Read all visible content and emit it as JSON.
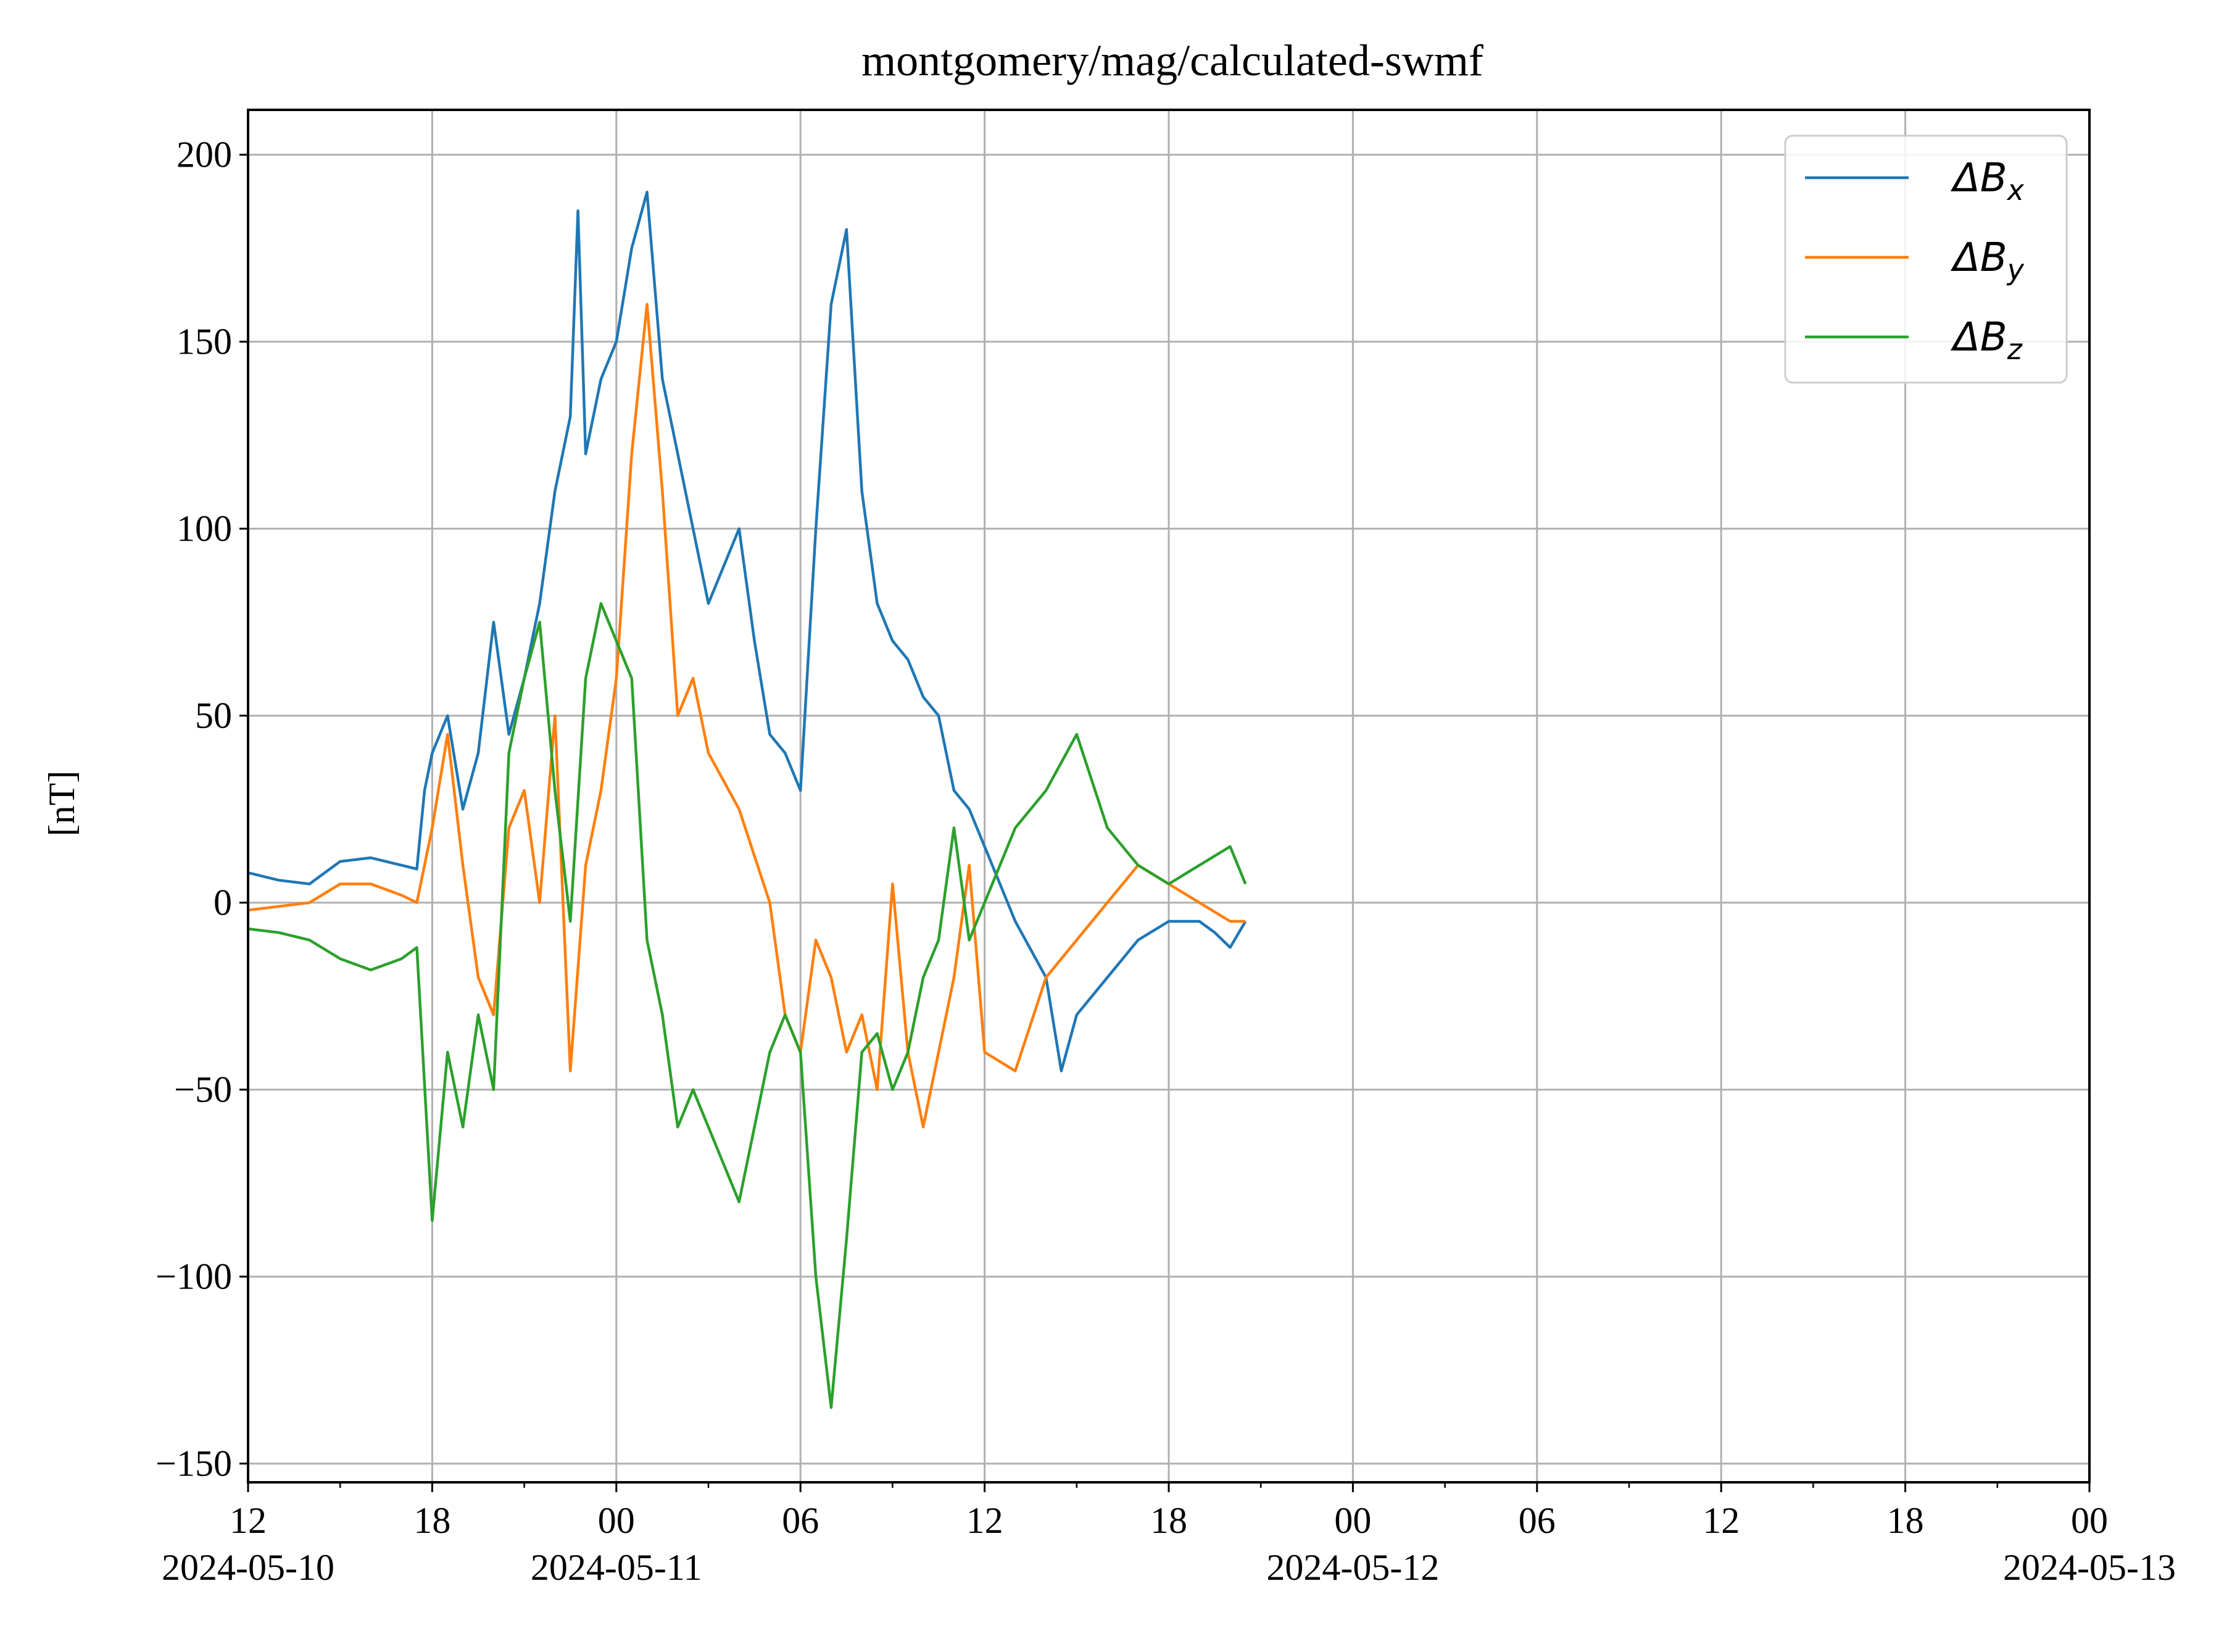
{
  "chart_data": {
    "type": "line",
    "title": "montgomery/mag/calculated-swmf",
    "xlabel": "",
    "ylabel": "[nT]",
    "grid": true,
    "legend_position": "top-right",
    "xlim_hours_from_start": [
      0,
      60
    ],
    "ylim": [
      -155,
      212
    ],
    "y_ticks": [
      {
        "value": 200,
        "label": "200"
      },
      {
        "value": 150,
        "label": "150"
      },
      {
        "value": 100,
        "label": "100"
      },
      {
        "value": 50,
        "label": "50"
      },
      {
        "value": 0,
        "label": "0"
      },
      {
        "value": -50,
        "label": "−50"
      },
      {
        "value": -100,
        "label": "−100"
      },
      {
        "value": -150,
        "label": "−150"
      }
    ],
    "x_ticks": [
      {
        "time": "2024-05-10 12:00",
        "label": "12",
        "date": "2024-05-10"
      },
      {
        "time": "2024-05-10 18:00",
        "label": "18",
        "date": ""
      },
      {
        "time": "2024-05-11 00:00",
        "label": "00",
        "date": "2024-05-11"
      },
      {
        "time": "2024-05-11 06:00",
        "label": "06",
        "date": ""
      },
      {
        "time": "2024-05-11 12:00",
        "label": "12",
        "date": ""
      },
      {
        "time": "2024-05-11 18:00",
        "label": "18",
        "date": ""
      },
      {
        "time": "2024-05-12 00:00",
        "label": "00",
        "date": "2024-05-12"
      },
      {
        "time": "2024-05-12 06:00",
        "label": "06",
        "date": ""
      },
      {
        "time": "2024-05-12 12:00",
        "label": "12",
        "date": ""
      },
      {
        "time": "2024-05-12 18:00",
        "label": "18",
        "date": ""
      },
      {
        "time": "2024-05-13 00:00",
        "label": "00",
        "date": "2024-05-13"
      }
    ],
    "x_minor_tick_hours": [
      3,
      9,
      15,
      21,
      27,
      33,
      39,
      45,
      51,
      57
    ],
    "x_tick_hours": [
      0,
      6,
      12,
      18,
      24,
      30,
      36,
      42,
      48,
      54,
      60
    ],
    "series": [
      {
        "name": "ΔB",
        "subscript": "x",
        "color": "#1f77b4",
        "t": [
          "2024-05-10 12:00",
          "2024-05-10 13:00",
          "2024-05-10 14:00",
          "2024-05-10 15:00",
          "2024-05-10 16:00",
          "2024-05-10 17:00",
          "2024-05-10 17:30",
          "2024-05-10 17:45",
          "2024-05-10 18:00",
          "2024-05-10 18:30",
          "2024-05-10 19:00",
          "2024-05-10 19:30",
          "2024-05-10 20:00",
          "2024-05-10 20:30",
          "2024-05-10 21:00",
          "2024-05-10 21:30",
          "2024-05-10 22:00",
          "2024-05-10 22:30",
          "2024-05-10 22:45",
          "2024-05-10 23:00",
          "2024-05-10 23:30",
          "2024-05-11 00:00",
          "2024-05-11 00:30",
          "2024-05-11 01:00",
          "2024-05-11 01:30",
          "2024-05-11 02:00",
          "2024-05-11 02:30",
          "2024-05-11 03:00",
          "2024-05-11 04:00",
          "2024-05-11 04:30",
          "2024-05-11 05:00",
          "2024-05-11 05:30",
          "2024-05-11 06:00",
          "2024-05-11 06:30",
          "2024-05-11 07:00",
          "2024-05-11 07:30",
          "2024-05-11 08:00",
          "2024-05-11 08:30",
          "2024-05-11 09:00",
          "2024-05-11 09:30",
          "2024-05-11 10:00",
          "2024-05-11 10:30",
          "2024-05-11 11:00",
          "2024-05-11 11:30",
          "2024-05-11 12:00",
          "2024-05-11 12:30",
          "2024-05-11 13:00",
          "2024-05-11 14:00",
          "2024-05-11 14:30",
          "2024-05-11 15:00",
          "2024-05-11 16:00",
          "2024-05-11 17:00",
          "2024-05-11 18:00",
          "2024-05-11 19:00",
          "2024-05-11 19:30",
          "2024-05-11 20:00",
          "2024-05-11 20:30"
        ],
        "values": [
          8,
          6,
          5,
          11,
          12,
          10,
          9,
          30,
          40,
          50,
          25,
          40,
          75,
          45,
          60,
          80,
          110,
          130,
          185,
          120,
          140,
          150,
          175,
          190,
          140,
          120,
          100,
          80,
          100,
          70,
          45,
          40,
          30,
          100,
          160,
          180,
          110,
          80,
          70,
          65,
          55,
          50,
          30,
          25,
          15,
          5,
          -5,
          -20,
          -45,
          -30,
          -20,
          -10,
          -5,
          -5,
          -8,
          -12,
          -5
        ]
      },
      {
        "name": "ΔB",
        "subscript": "y",
        "color": "#ff7f0e",
        "t": [
          "2024-05-10 12:00",
          "2024-05-10 13:00",
          "2024-05-10 14:00",
          "2024-05-10 15:00",
          "2024-05-10 16:00",
          "2024-05-10 17:00",
          "2024-05-10 17:30",
          "2024-05-10 18:00",
          "2024-05-10 18:30",
          "2024-05-10 19:00",
          "2024-05-10 19:30",
          "2024-05-10 20:00",
          "2024-05-10 20:30",
          "2024-05-10 21:00",
          "2024-05-10 21:30",
          "2024-05-10 22:00",
          "2024-05-10 22:30",
          "2024-05-10 23:00",
          "2024-05-10 23:30",
          "2024-05-11 00:00",
          "2024-05-11 00:30",
          "2024-05-11 01:00",
          "2024-05-11 01:30",
          "2024-05-11 02:00",
          "2024-05-11 02:30",
          "2024-05-11 03:00",
          "2024-05-11 04:00",
          "2024-05-11 05:00",
          "2024-05-11 05:30",
          "2024-05-11 06:00",
          "2024-05-11 06:30",
          "2024-05-11 07:00",
          "2024-05-11 07:30",
          "2024-05-11 08:00",
          "2024-05-11 08:30",
          "2024-05-11 09:00",
          "2024-05-11 09:30",
          "2024-05-11 10:00",
          "2024-05-11 10:30",
          "2024-05-11 11:00",
          "2024-05-11 11:30",
          "2024-05-11 12:00",
          "2024-05-11 13:00",
          "2024-05-11 14:00",
          "2024-05-11 15:00",
          "2024-05-11 16:00",
          "2024-05-11 17:00",
          "2024-05-11 18:00",
          "2024-05-11 19:00",
          "2024-05-11 20:00",
          "2024-05-11 20:30"
        ],
        "values": [
          -2,
          -1,
          0,
          5,
          5,
          2,
          0,
          20,
          45,
          10,
          -20,
          -30,
          20,
          30,
          0,
          50,
          -45,
          10,
          30,
          60,
          120,
          160,
          110,
          50,
          60,
          40,
          25,
          0,
          -30,
          -40,
          -10,
          -20,
          -40,
          -30,
          -50,
          5,
          -40,
          -60,
          -40,
          -20,
          10,
          -40,
          -45,
          -20,
          -10,
          0,
          10,
          5,
          0,
          -5,
          -5
        ]
      },
      {
        "name": "ΔB",
        "subscript": "z",
        "color": "#2ca02c",
        "t": [
          "2024-05-10 12:00",
          "2024-05-10 13:00",
          "2024-05-10 14:00",
          "2024-05-10 15:00",
          "2024-05-10 16:00",
          "2024-05-10 17:00",
          "2024-05-10 17:30",
          "2024-05-10 18:00",
          "2024-05-10 18:30",
          "2024-05-10 19:00",
          "2024-05-10 19:30",
          "2024-05-10 20:00",
          "2024-05-10 20:30",
          "2024-05-10 21:00",
          "2024-05-10 21:30",
          "2024-05-10 22:00",
          "2024-05-10 22:30",
          "2024-05-10 23:00",
          "2024-05-10 23:30",
          "2024-05-11 00:00",
          "2024-05-11 00:30",
          "2024-05-11 01:00",
          "2024-05-11 01:30",
          "2024-05-11 02:00",
          "2024-05-11 02:30",
          "2024-05-11 03:00",
          "2024-05-11 04:00",
          "2024-05-11 05:00",
          "2024-05-11 05:30",
          "2024-05-11 06:00",
          "2024-05-11 06:30",
          "2024-05-11 07:00",
          "2024-05-11 07:30",
          "2024-05-11 08:00",
          "2024-05-11 08:30",
          "2024-05-11 09:00",
          "2024-05-11 09:30",
          "2024-05-11 10:00",
          "2024-05-11 10:30",
          "2024-05-11 11:00",
          "2024-05-11 11:30",
          "2024-05-11 12:00",
          "2024-05-11 13:00",
          "2024-05-11 14:00",
          "2024-05-11 15:00",
          "2024-05-11 16:00",
          "2024-05-11 17:00",
          "2024-05-11 18:00",
          "2024-05-11 19:00",
          "2024-05-11 20:00",
          "2024-05-11 20:30"
        ],
        "values": [
          -7,
          -8,
          -10,
          -15,
          -18,
          -15,
          -12,
          -85,
          -40,
          -60,
          -30,
          -50,
          40,
          60,
          75,
          30,
          -5,
          60,
          80,
          70,
          60,
          -10,
          -30,
          -60,
          -50,
          -60,
          -80,
          -40,
          -30,
          -40,
          -100,
          -135,
          -90,
          -40,
          -35,
          -50,
          -40,
          -20,
          -10,
          20,
          -10,
          0,
          20,
          30,
          45,
          20,
          10,
          5,
          10,
          15,
          5
        ]
      }
    ]
  }
}
